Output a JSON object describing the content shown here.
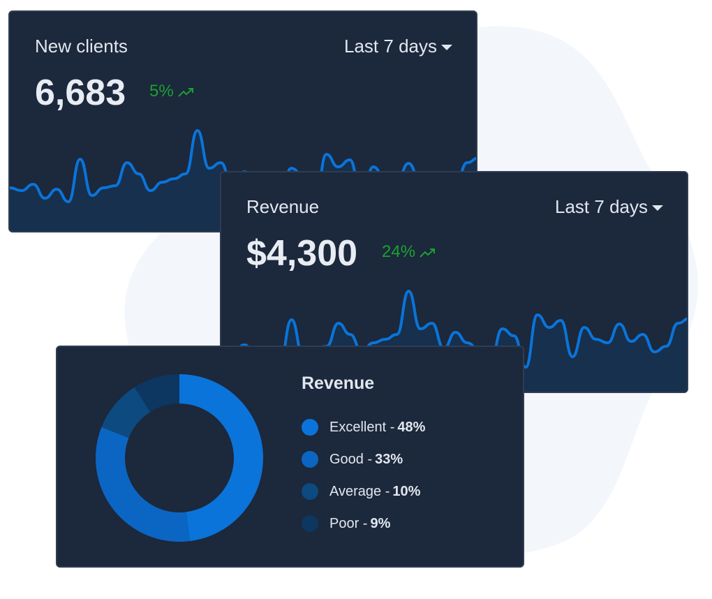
{
  "colors": {
    "card_bg": "#1c283b",
    "accent": "#0a74da",
    "positive": "#1aa231",
    "blob": "#f3f6fb"
  },
  "new_clients": {
    "title": "New clients",
    "range": "Last 7 days",
    "value": "6,683",
    "delta": "5%",
    "delta_icon": "trending-up-icon"
  },
  "revenue_card": {
    "title": "Revenue",
    "range": "Last 7 days",
    "value": "$4,300",
    "delta": "24%",
    "delta_icon": "trending-up-icon"
  },
  "sparkline": [
    62,
    58,
    67,
    47,
    60,
    42,
    103,
    51,
    62,
    65,
    98,
    82,
    58,
    70,
    75,
    82,
    144,
    90,
    98,
    62,
    85,
    70,
    60,
    45,
    90,
    80,
    35,
    110,
    92,
    102,
    50,
    92,
    75,
    70,
    97,
    72,
    82,
    57,
    65,
    98,
    105
  ],
  "chart_data": {
    "type": "pie",
    "title": "Revenue",
    "categories": [
      "Excellent",
      "Good",
      "Average",
      "Poor"
    ],
    "values": [
      48,
      33,
      10,
      9
    ],
    "labels": [
      "48%",
      "33%",
      "10%",
      "9%"
    ],
    "colors": [
      "#0a74da",
      "#0b66c3",
      "#0c4a80",
      "#0d3660"
    ],
    "donut": true,
    "legend": "right"
  }
}
